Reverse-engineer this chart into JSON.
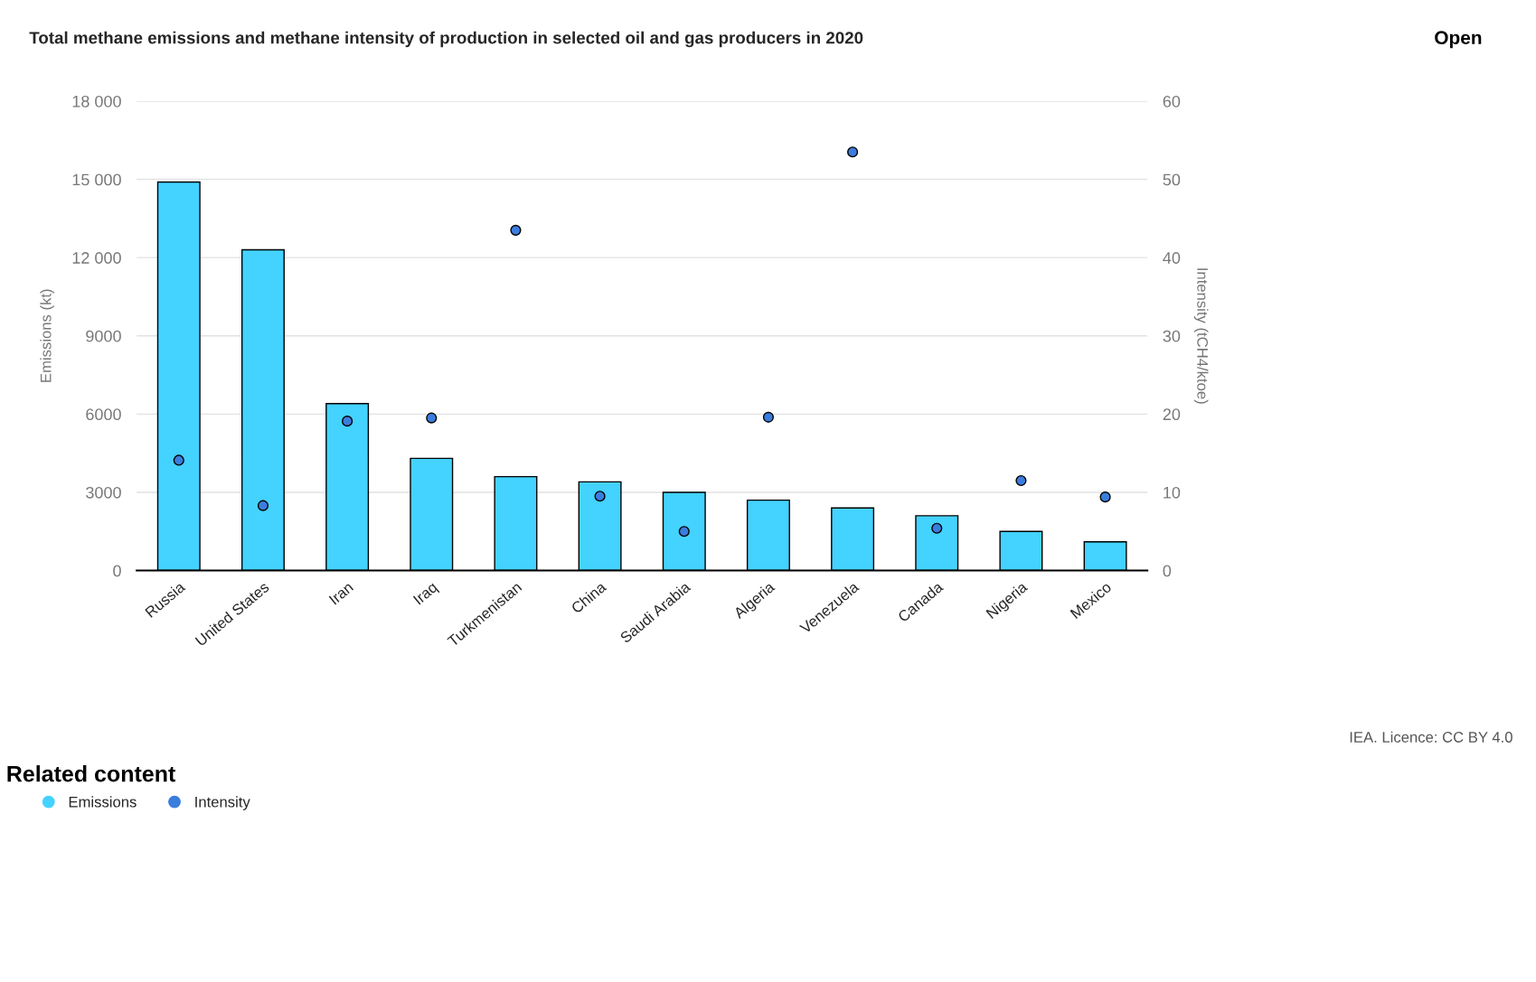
{
  "chart_data": {
    "type": "bar",
    "title": "Total methane emissions and methane intensity of production in selected oil and gas producers in 2020",
    "categories": [
      "Russia",
      "United States",
      "Iran",
      "Iraq",
      "Turkmenistan",
      "China",
      "Saudi Arabia",
      "Algeria",
      "Venezuela",
      "Canada",
      "Nigeria",
      "Mexico"
    ],
    "series": [
      {
        "name": "Emissions",
        "color": "#44d2ff",
        "values": [
          14900,
          12300,
          6400,
          4300,
          3600,
          3400,
          3000,
          2700,
          2400,
          2100,
          1500,
          1100
        ]
      },
      {
        "name": "Intensity",
        "type": "scatter",
        "axis": "y2",
        "color": "#3b7ddd",
        "marker": "circle",
        "values": [
          14.1,
          8.3,
          19.1,
          19.5,
          43.5,
          9.5,
          5,
          19.6,
          53.5,
          5.4,
          11.5,
          9.4
        ]
      }
    ],
    "ylabel": "Emissions (kt)",
    "y2label": "Intensity (tCH4/ktoe)",
    "ylim": [
      0,
      18000
    ],
    "yticks": [
      0,
      3000,
      6000,
      9000,
      {
        "value": 12000,
        "label": "12 000"
      },
      {
        "value": 15000,
        "label": "15 000"
      },
      {
        "value": 18000,
        "label": "18 000"
      }
    ],
    "y2lim": [
      0,
      60
    ],
    "y2ticks": [
      0,
      10,
      20,
      30,
      40,
      50,
      60
    ],
    "grid": "y",
    "legend": "bottom left",
    "annotations": [
      "Open",
      "IEA. Licence: CC BY 4.0",
      "Related content"
    ]
  }
}
